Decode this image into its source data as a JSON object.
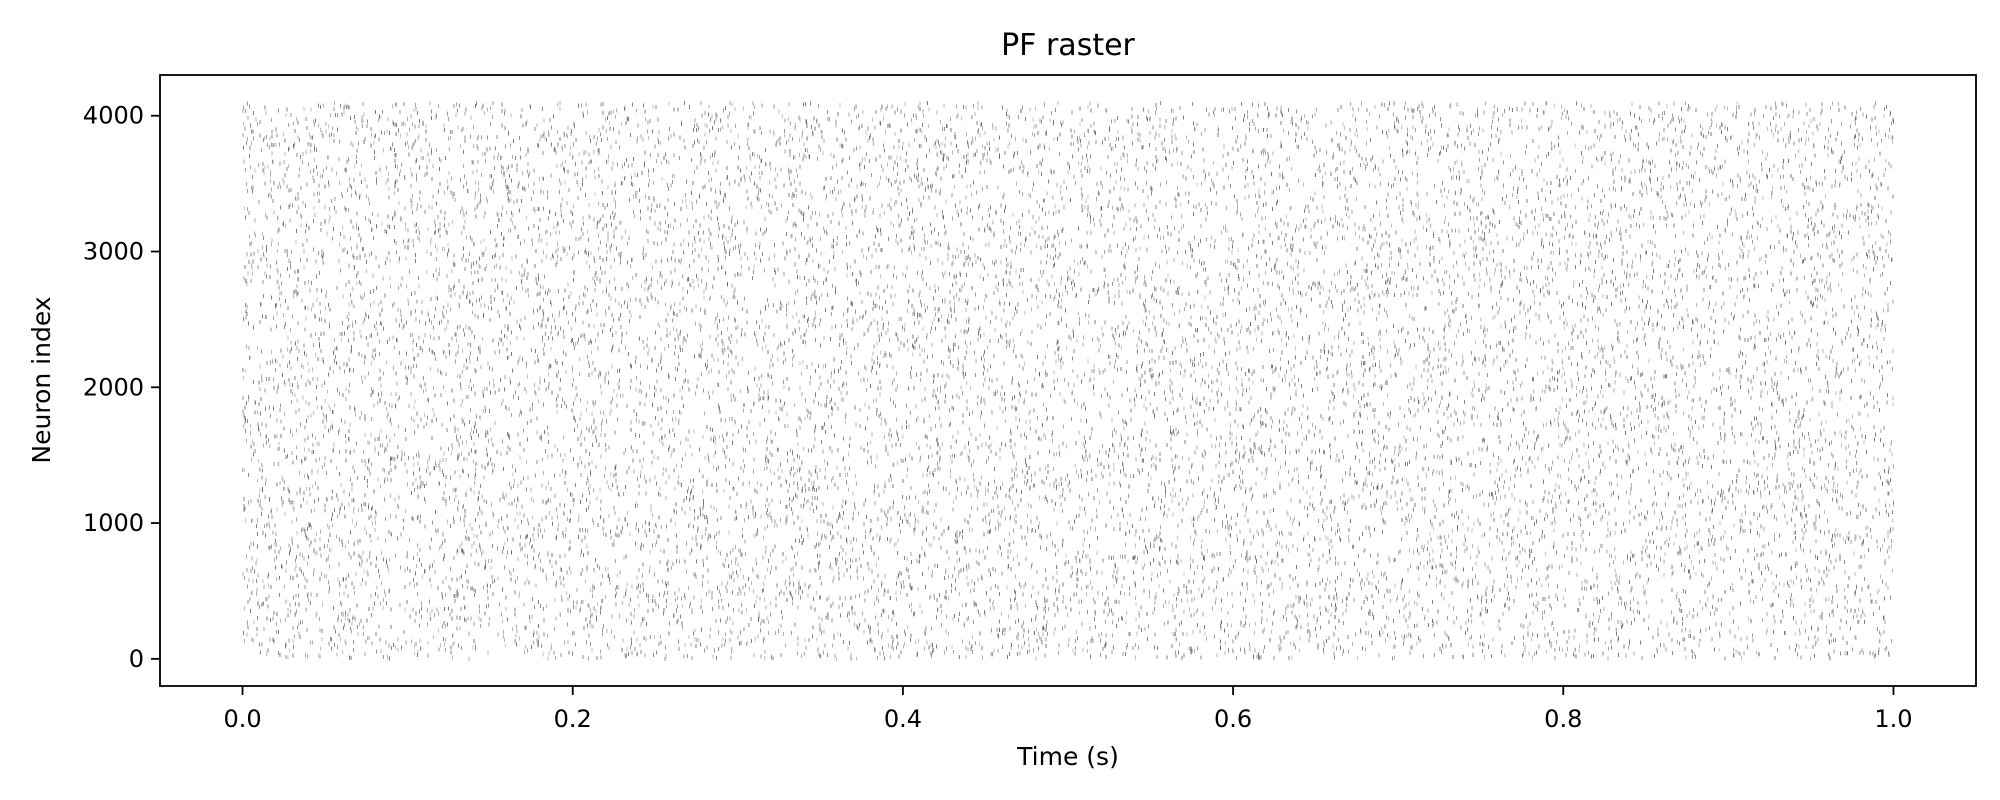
{
  "chart_data": {
    "type": "scatter",
    "subtype": "raster",
    "title": "PF raster",
    "xlabel": "Time (s)",
    "ylabel": "Neuron index",
    "xlim": [
      -0.05,
      1.05
    ],
    "ylim": [
      -200,
      4300
    ],
    "x_ticks": [
      0.0,
      0.2,
      0.4,
      0.6,
      0.8,
      1.0
    ],
    "x_tick_labels": [
      "0.0",
      "0.2",
      "0.4",
      "0.6",
      "0.8",
      "1.0"
    ],
    "y_ticks": [
      0,
      1000,
      2000,
      3000,
      4000
    ],
    "y_tick_labels": [
      "0",
      "1000",
      "2000",
      "3000",
      "4000"
    ],
    "grid": false,
    "legend": "none",
    "series": [
      {
        "marker_color": "#555555",
        "time_range": [
          0.0,
          1.0
        ],
        "neuron_range": [
          0,
          4095
        ],
        "spike_count_estimate": 16000
      }
    ]
  }
}
